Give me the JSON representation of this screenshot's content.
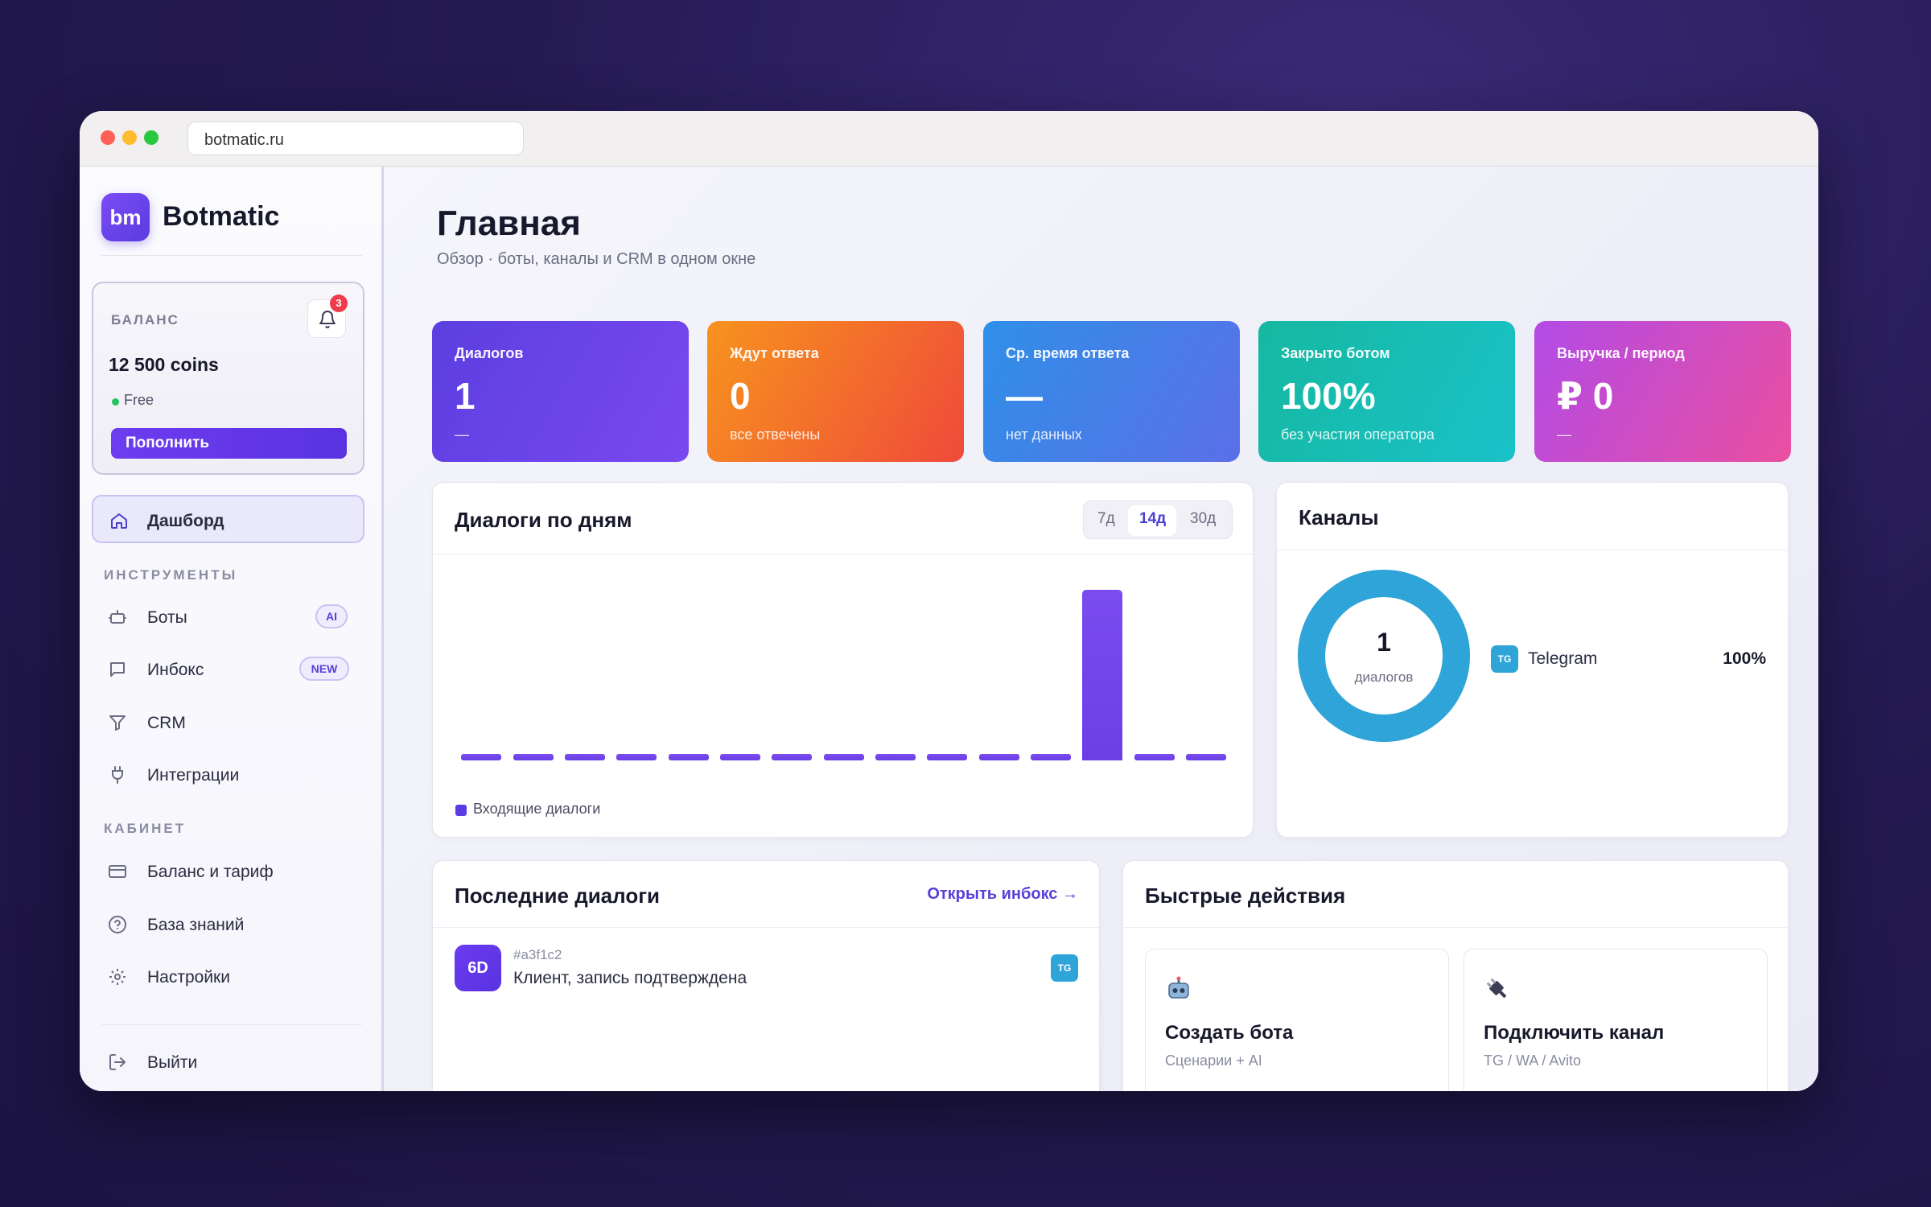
{
  "browser": {
    "url": "botmatic.ru"
  },
  "brand": {
    "logo_text": "bm",
    "name": "Botmatic",
    "accent": "#6d3cf0"
  },
  "balance": {
    "label": "БАЛАНС",
    "notifications": "3",
    "amount": "12 500 coins",
    "plan": "Free",
    "topup_label": "Пополнить"
  },
  "nav": {
    "dashboard": "Дашборд",
    "section_tools": "ИНСТРУМЕНТЫ",
    "bots": "Боты",
    "bots_badge": "AI",
    "inbox": "Инбокс",
    "inbox_badge": "NEW",
    "crm": "CRM",
    "integrations": "Интеграции",
    "section_cabinet": "КАБИНЕТ",
    "billing": "Баланс и тариф",
    "knowledge": "База знаний",
    "settings": "Настройки",
    "logout": "Выйти"
  },
  "page": {
    "title": "Главная",
    "subtitle": "Обзор · боты, каналы и CRM в одном окне"
  },
  "stats": [
    {
      "title": "Диалогов",
      "value": "1",
      "sub": "—",
      "from": "#5b3fe0",
      "to": "#7a48f0"
    },
    {
      "title": "Ждут ответа",
      "value": "0",
      "sub": "все отвечены",
      "from": "#f7931e",
      "to": "#ef4a3a"
    },
    {
      "title": "Ср. время ответа",
      "value": "—",
      "sub": "нет данных",
      "from": "#2f8fe8",
      "to": "#5b6fe8"
    },
    {
      "title": "Закрыто ботом",
      "value": "100%",
      "sub": "без участия оператора",
      "from": "#16b8a0",
      "to": "#19c2c9"
    },
    {
      "title": "Выручка / период",
      "value": "₽ 0",
      "sub": "—",
      "from": "#b24be6",
      "to": "#ea4fa0"
    }
  ],
  "dialogs_chart": {
    "title": "Диалоги по дням",
    "ranges": [
      "7д",
      "14д",
      "30д"
    ],
    "selected_range": "14д",
    "legend": "Входящие диалоги"
  },
  "chart_data": {
    "type": "bar",
    "series": [
      {
        "name": "Входящие диалоги",
        "values": [
          0,
          0,
          0,
          0,
          0,
          0,
          0,
          0,
          0,
          0,
          0,
          0,
          1,
          0,
          0
        ]
      }
    ],
    "ylim": [
      0,
      1
    ],
    "legend_position": "bottom-left",
    "grid": false
  },
  "channels": {
    "title": "Каналы",
    "total": "1",
    "total_label": "диалогов",
    "items": [
      {
        "badge": "TG",
        "name": "Telegram",
        "share_text": "100%",
        "share": 1.0,
        "color": "#2ea4d8"
      }
    ]
  },
  "recent": {
    "title": "Последние диалоги",
    "open_link": "Открыть инбокс →",
    "items": [
      {
        "avatar": "6D",
        "id": "#a3f1c2",
        "text": "Клиент, запись подтверждена",
        "channel": "TG"
      }
    ]
  },
  "quick": {
    "title": "Быстрые действия",
    "actions": [
      {
        "icon": "robot-icon",
        "title": "Создать бота",
        "sub": "Сценарии + AI"
      },
      {
        "icon": "plug-icon",
        "title": "Подключить канал",
        "sub": "TG / WA / Avito"
      }
    ]
  }
}
